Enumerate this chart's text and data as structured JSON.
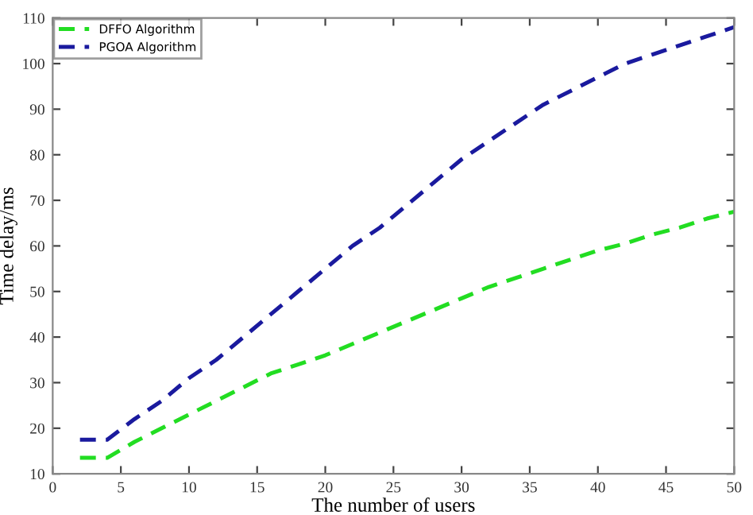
{
  "chart_data": {
    "type": "line",
    "xlabel": "The number of users",
    "ylabel": "Time delay/ms",
    "x": [
      2,
      4,
      6,
      8,
      10,
      12,
      14,
      16,
      18,
      20,
      22,
      24,
      26,
      28,
      30,
      32,
      34,
      36,
      38,
      40,
      42,
      44,
      46,
      48,
      50
    ],
    "series": [
      {
        "name": "DFFO Algorithm",
        "color": "#22dd22",
        "values": [
          13.5,
          13.5,
          17,
          20,
          23,
          26,
          29,
          32,
          34,
          36,
          38.5,
          41,
          43.5,
          46,
          48.5,
          51,
          53,
          55,
          57,
          59,
          60.5,
          62.5,
          64,
          66,
          67.5
        ]
      },
      {
        "name": "PGOA Algorithm",
        "color": "#1a1a9e",
        "values": [
          17.5,
          17.5,
          22,
          26,
          31,
          35,
          40,
          45,
          50,
          55,
          60,
          64,
          69,
          74,
          79,
          83,
          87,
          91,
          94,
          97,
          100,
          102,
          104,
          106,
          108
        ]
      }
    ],
    "xlim": [
      0,
      50
    ],
    "xticks": [
      0,
      5,
      10,
      15,
      20,
      25,
      30,
      35,
      40,
      45,
      50
    ],
    "ylim": [
      10,
      110
    ],
    "yticks": [
      10,
      20,
      30,
      40,
      50,
      60,
      70,
      80,
      90,
      100,
      110
    ],
    "grid": false,
    "legend": "top left",
    "line_style": "dashed",
    "marker": "none"
  }
}
